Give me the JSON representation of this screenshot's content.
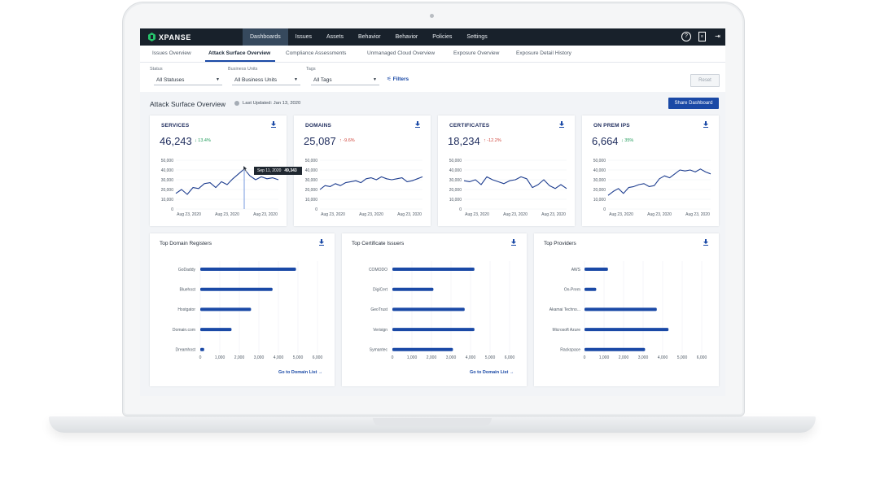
{
  "nav": {
    "brand": "XPANSE",
    "menu": [
      "Dashboards",
      "Issues",
      "Assets",
      "Behavior",
      "Behavior",
      "Policies",
      "Settings"
    ],
    "active_menu": "Dashboards",
    "icons": [
      "help-icon",
      "document-icon",
      "logout-icon"
    ]
  },
  "subtabs": [
    "Issues Overview",
    "Attack Surface Overview",
    "Compliance Assessments",
    "Unmanaged Cloud Overview",
    "Exposure Overview",
    "Exposure Detail History"
  ],
  "active_subtab": "Attack Surface Overview",
  "filters": {
    "status": {
      "label": "Status",
      "value": "All Statuses"
    },
    "business_units": {
      "label": "Business Units",
      "value": "All Business Units"
    },
    "tags": {
      "label": "Tags",
      "value": "All Tags"
    },
    "filters_link": "Filters",
    "reset": "Reset"
  },
  "section": {
    "title": "Attack Surface Overview",
    "last_updated": "Last Updated: Jan 13, 2020",
    "share_button": "Share Dashboard"
  },
  "colors": {
    "accent": "#1a49a6",
    "nav_bg": "#18212b",
    "down": "#1f9b5a",
    "up": "#d0453b"
  },
  "tooltip": {
    "date": "Sep 11, 2020",
    "value": "49,343"
  },
  "chart_data": [
    {
      "type": "line",
      "title": "SERVICES",
      "total": "46,243",
      "delta": "13.4%",
      "delta_direction": "down",
      "ylim": [
        0,
        50000
      ],
      "yticks": [
        "50,000",
        "40,000",
        "30,000",
        "20,000",
        "10,000",
        "0"
      ],
      "xticks": [
        "Aug 23, 2020",
        "Aug 23, 2020",
        "Aug 23, 2020"
      ],
      "values": [
        16000,
        20000,
        15000,
        22000,
        21000,
        26000,
        27000,
        22000,
        28000,
        25000,
        31000,
        36000,
        41000,
        34000,
        30000,
        33000,
        31000,
        32000,
        30000
      ]
    },
    {
      "type": "line",
      "title": "DOMAINS",
      "total": "25,087",
      "delta": "-9.6%",
      "delta_direction": "up",
      "ylim": [
        0,
        50000
      ],
      "yticks": [
        "50,000",
        "40,000",
        "30,000",
        "20,000",
        "10,000",
        "0"
      ],
      "xticks": [
        "Aug 23, 2020",
        "Aug 23, 2020",
        "Aug 23, 2020"
      ],
      "values": [
        20000,
        24000,
        23000,
        26000,
        24000,
        27000,
        28000,
        29000,
        27000,
        31000,
        32000,
        30000,
        33000,
        31000,
        30000,
        31000,
        32000,
        28000,
        29000,
        31000,
        33000
      ]
    },
    {
      "type": "line",
      "title": "CERTIFICATES",
      "total": "18,234",
      "delta": "-12.2%",
      "delta_direction": "up",
      "ylim": [
        0,
        50000
      ],
      "yticks": [
        "50,000",
        "40,000",
        "30,000",
        "20,000",
        "10,000",
        "0"
      ],
      "xticks": [
        "Aug 23, 2020",
        "Aug 23, 2020",
        "Aug 23, 2020"
      ],
      "values": [
        29000,
        28000,
        30000,
        25000,
        33000,
        30000,
        28000,
        26000,
        29000,
        30000,
        33000,
        31000,
        22000,
        25000,
        30000,
        24000,
        21000,
        25000,
        21000
      ]
    },
    {
      "type": "line",
      "title": "ON PREM IPS",
      "total": "6,664",
      "delta": "35%",
      "delta_direction": "down",
      "ylim": [
        0,
        50000
      ],
      "yticks": [
        "50,000",
        "40,000",
        "30,000",
        "20,000",
        "10,000",
        "0"
      ],
      "xticks": [
        "Aug 23, 2020",
        "Aug 23, 2020",
        "Aug 23, 2020"
      ],
      "values": [
        14000,
        18000,
        21000,
        16000,
        22000,
        23000,
        25000,
        26000,
        23000,
        24000,
        31000,
        34000,
        32000,
        36000,
        40000,
        39000,
        40000,
        38000,
        41000,
        38000,
        36000
      ]
    },
    {
      "type": "bar",
      "title": "Top Domain Registers",
      "orientation": "horizontal",
      "categories": [
        "GoDaddy",
        "Bluehost",
        "Hostgator",
        "Domain.com",
        "Dreamhost"
      ],
      "values": [
        4900,
        3700,
        2600,
        1600,
        200
      ],
      "xlim": [
        0,
        6000
      ],
      "xticks": [
        "0",
        "1,000",
        "2,000",
        "3,000",
        "4,000",
        "5,000",
        "6,000"
      ],
      "link": "Go to Domain List →"
    },
    {
      "type": "bar",
      "title": "Top Certificate Issuers",
      "orientation": "horizontal",
      "categories": [
        "COMODO",
        "DigiCert",
        "GeoTrust",
        "Verisign",
        "Symantec"
      ],
      "values": [
        4200,
        2100,
        3700,
        4200,
        3100
      ],
      "xlim": [
        0,
        6000
      ],
      "xticks": [
        "0",
        "1,000",
        "2,000",
        "3,000",
        "4,000",
        "5,000",
        "6,000"
      ],
      "link": "Go to Domain List →"
    },
    {
      "type": "bar",
      "title": "Top Providers",
      "orientation": "horizontal",
      "categories": [
        "AWS",
        "On-Prem",
        "Akamai Techno...",
        "Microsoft Azure",
        "Rackspace"
      ],
      "values": [
        1200,
        600,
        3700,
        4300,
        3100
      ],
      "xlim": [
        0,
        6000
      ],
      "xticks": [
        "0",
        "1,000",
        "2,000",
        "3,000",
        "4,000",
        "5,000",
        "6,000"
      ],
      "link": ""
    }
  ]
}
